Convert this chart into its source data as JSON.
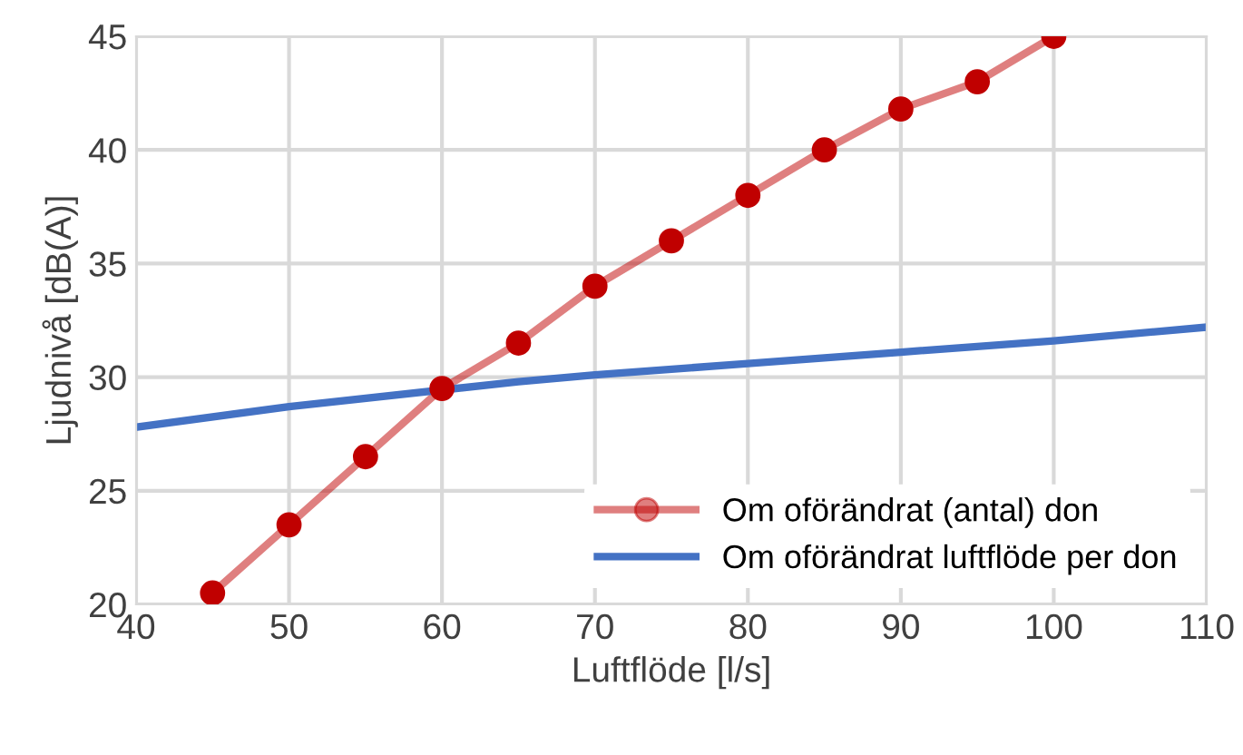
{
  "chart_data": {
    "type": "line",
    "xlabel": "Luftflöde [l/s]",
    "ylabel": "Ljudnivå [dB(A)]",
    "xlim": [
      40,
      110
    ],
    "xticks": [
      40,
      50,
      60,
      70,
      80,
      90,
      100,
      110
    ],
    "ylim": [
      20,
      45
    ],
    "yticks": [
      20,
      25,
      30,
      35,
      40,
      45
    ],
    "grid": true,
    "legend": "bottom right",
    "series": [
      {
        "name": "Om oförändrat (antal) don",
        "color": "#c00000",
        "marker": "circle",
        "x": [
          45,
          50,
          55,
          60,
          65,
          70,
          75,
          80,
          85,
          90,
          95,
          100
        ],
        "values": [
          20.5,
          23.5,
          26.5,
          29.5,
          31.5,
          34,
          36,
          38,
          40,
          41.8,
          43,
          45
        ]
      },
      {
        "name": "Om oförändrat luftflöde per don",
        "color": "#4472c4",
        "marker": "none",
        "x": [
          40,
          50,
          65,
          70,
          80,
          90,
          100,
          110
        ],
        "values": [
          27.8,
          28.7,
          29.8,
          30.1,
          30.6,
          31.1,
          31.6,
          32.2
        ]
      }
    ]
  }
}
